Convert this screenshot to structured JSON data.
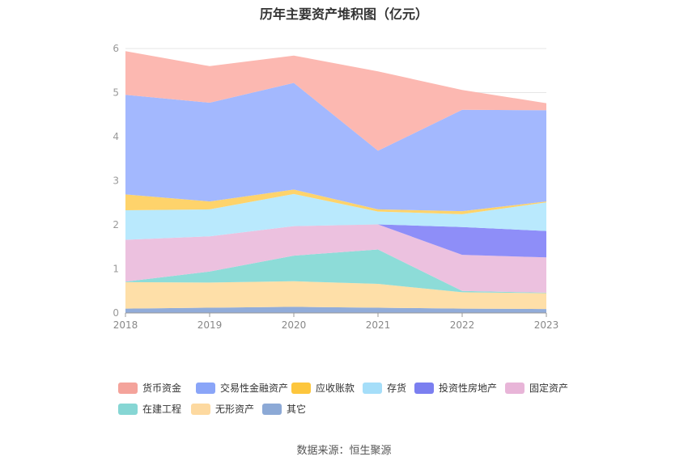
{
  "chart_data": {
    "type": "area",
    "stacked": true,
    "title": "历年主要资产堆积图（亿元）",
    "x": [
      "2018",
      "2019",
      "2020",
      "2021",
      "2022",
      "2023"
    ],
    "yticks": [
      "0",
      "1",
      "2",
      "3",
      "4",
      "5",
      "6"
    ],
    "ylim": [
      0,
      6
    ],
    "grid": true,
    "legend_position": "bottom",
    "series": [
      {
        "name": "其它",
        "color": "#91acd9",
        "values": [
          0.1,
          0.12,
          0.14,
          0.12,
          0.1,
          0.09
        ]
      },
      {
        "name": "无形资产",
        "color": "#fedfa8",
        "values": [
          0.6,
          0.57,
          0.58,
          0.54,
          0.37,
          0.36
        ]
      },
      {
        "name": "在建工程",
        "color": "#8ddcd8",
        "values": [
          0.01,
          0.25,
          0.58,
          0.78,
          0.03,
          0.01
        ]
      },
      {
        "name": "固定资产",
        "color": "#ecc1df",
        "values": [
          0.95,
          0.8,
          0.67,
          0.57,
          0.82,
          0.8
        ]
      },
      {
        "name": "投资性房地产",
        "color": "#8e8ef8",
        "values": [
          0.0,
          0.0,
          0.0,
          0.0,
          0.63,
          0.6
        ]
      },
      {
        "name": "存货",
        "color": "#b9e9fd",
        "values": [
          0.67,
          0.61,
          0.73,
          0.29,
          0.29,
          0.65
        ]
      },
      {
        "name": "应收账款",
        "color": "#fed36b",
        "values": [
          0.36,
          0.18,
          0.1,
          0.05,
          0.07,
          0.02
        ]
      },
      {
        "name": "交易性金融资产",
        "color": "#a3b8fe",
        "values": [
          2.26,
          2.24,
          2.42,
          1.33,
          2.3,
          2.07
        ]
      },
      {
        "name": "货币资金",
        "color": "#fcb8b1",
        "values": [
          0.99,
          0.83,
          0.62,
          1.8,
          0.45,
          0.16
        ]
      }
    ],
    "legend": [
      {
        "name": "货币资金",
        "color": "#f4a39b"
      },
      {
        "name": "交易性金融资产",
        "color": "#8aa5f8"
      },
      {
        "name": "应收账款",
        "color": "#fdc63d"
      },
      {
        "name": "存货",
        "color": "#a5def9"
      },
      {
        "name": "投资性房地产",
        "color": "#7b7ff0"
      },
      {
        "name": "固定资产",
        "color": "#e8b5d8"
      },
      {
        "name": "在建工程",
        "color": "#86d6d4"
      },
      {
        "name": "无形资产",
        "color": "#fdd9a0"
      },
      {
        "name": "其它",
        "color": "#8ca9d6"
      }
    ]
  },
  "source_text": "数据来源：恒生聚源"
}
